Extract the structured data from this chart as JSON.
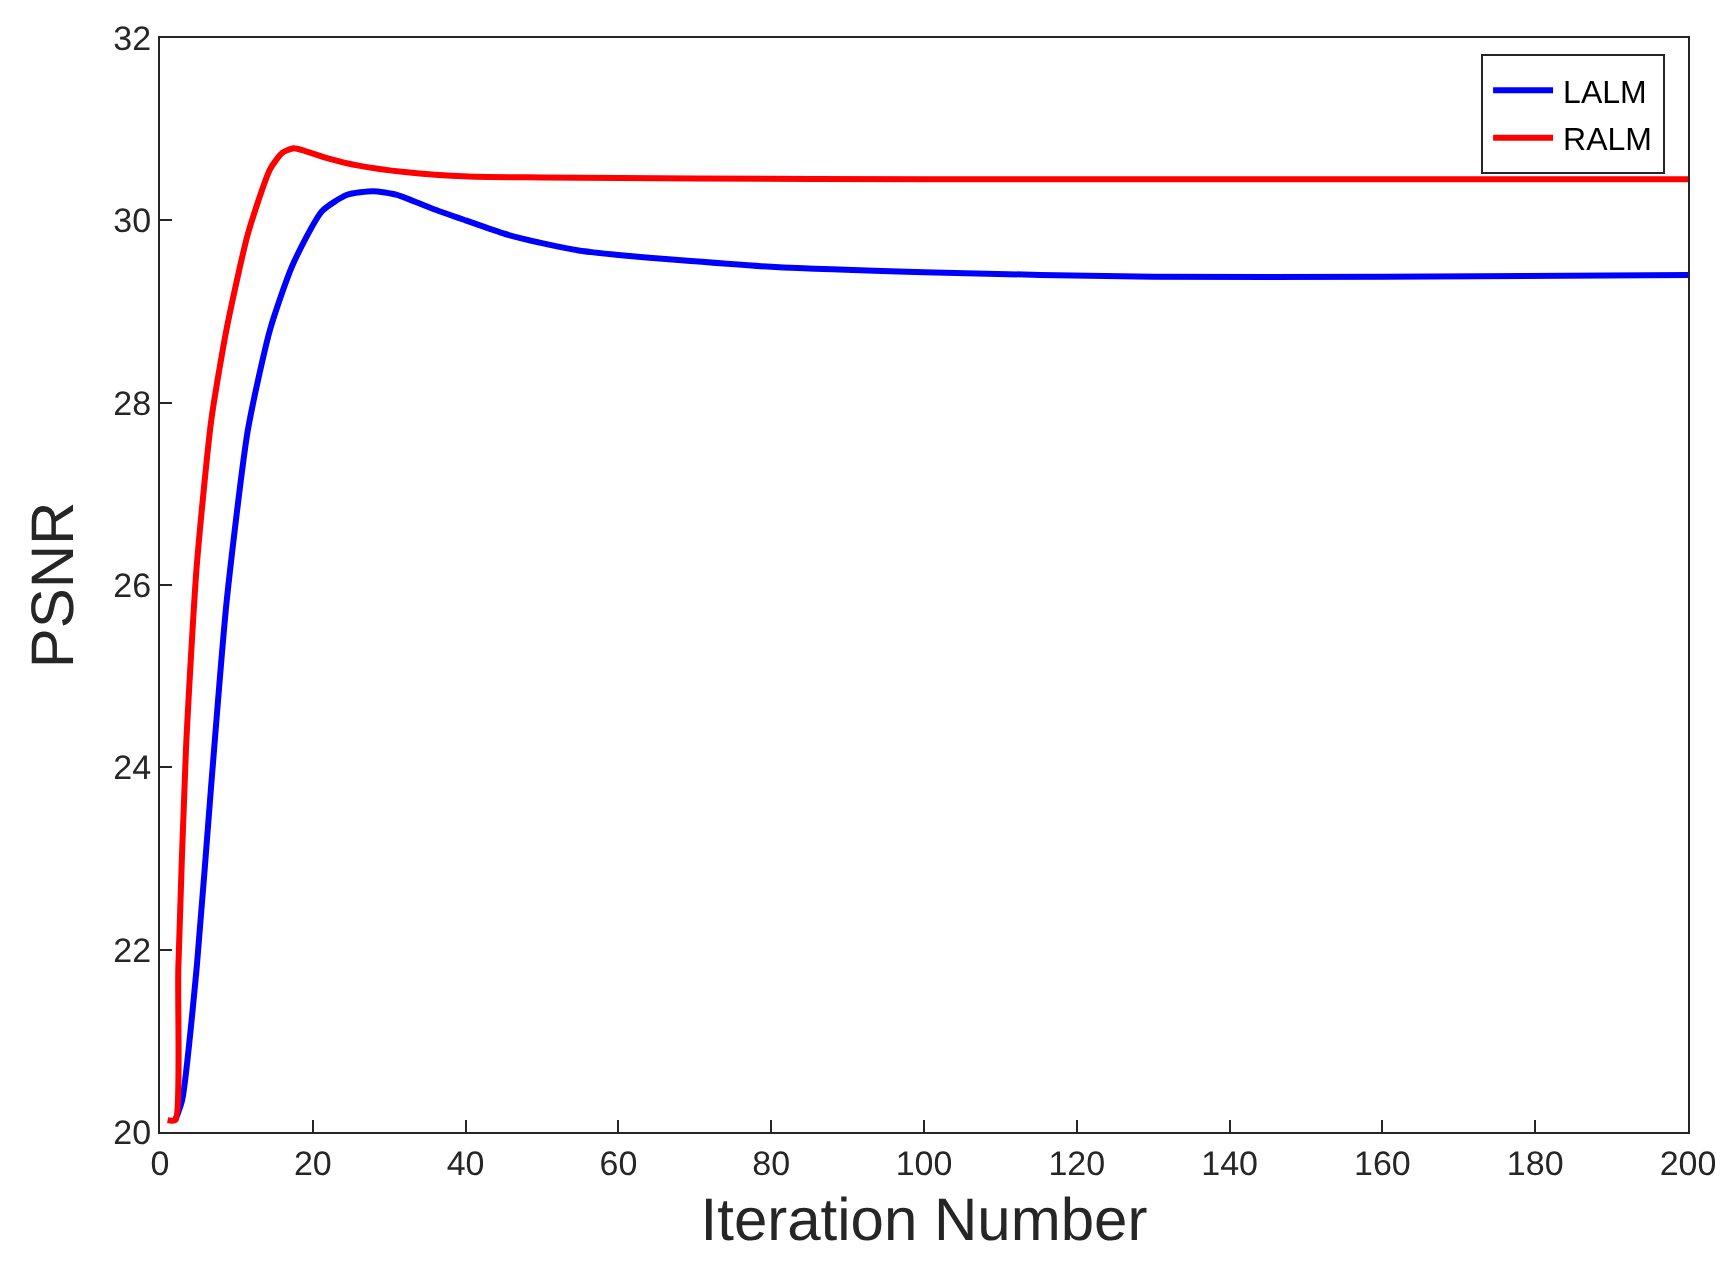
{
  "chart_data": {
    "type": "line",
    "xlabel": "Iteration Number",
    "ylabel": "PSNR",
    "xlim": [
      0,
      200
    ],
    "xticks": [
      0,
      20,
      40,
      60,
      80,
      100,
      120,
      140,
      160,
      180,
      200
    ],
    "ylim": [
      20,
      32
    ],
    "yticks": [
      20,
      22,
      24,
      26,
      28,
      30,
      32
    ],
    "legend": "top right",
    "marker": "none",
    "line_style": "solid",
    "series": [
      {
        "name": "LALM",
        "color": "#0000ff",
        "x": [
          2,
          2.9,
          4.8,
          6.7,
          8.7,
          11.5,
          14.4,
          17.3,
          21.2,
          24.5,
          27.9,
          31,
          35.6,
          40,
          45.2,
          50,
          54.8,
          60,
          67,
          80,
          100,
          130,
          160,
          200
        ],
        "values": [
          20.13,
          20.35,
          21.8,
          23.8,
          25.8,
          27.7,
          28.8,
          29.5,
          30.1,
          30.28,
          30.32,
          30.28,
          30.13,
          30.0,
          29.85,
          29.75,
          29.67,
          29.62,
          29.57,
          29.49,
          29.43,
          29.38,
          29.38,
          29.4
        ]
      },
      {
        "name": "RALM",
        "color": "#ff0000",
        "x": [
          1,
          2,
          2.4,
          3.4,
          4.8,
          6.7,
          8.7,
          11.5,
          14.4,
          16,
          17.5,
          19,
          22,
          26,
          32,
          40.4,
          50,
          70,
          100,
          150,
          200
        ],
        "values": [
          20.13,
          20.13,
          21.8,
          24.2,
          26.2,
          27.8,
          28.8,
          29.85,
          30.56,
          30.74,
          30.79,
          30.76,
          30.68,
          30.6,
          30.53,
          30.48,
          30.47,
          30.46,
          30.45,
          30.45,
          30.45
        ]
      }
    ]
  }
}
